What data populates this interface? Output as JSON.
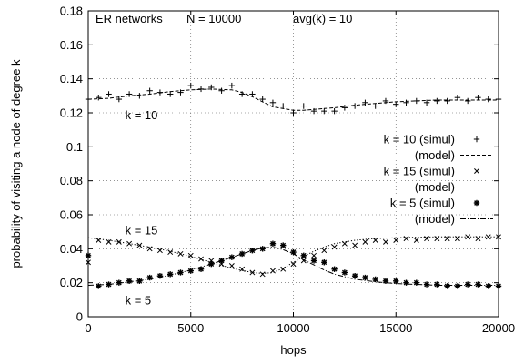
{
  "chart_data": {
    "type": "scatter",
    "title": "",
    "xlabel": "hops",
    "ylabel": "probability of visiting a node of degree k",
    "xlim": [
      0,
      20000
    ],
    "ylim": [
      0,
      0.18
    ],
    "xticks": [
      "0",
      "5000",
      "10000",
      "15000",
      "20000"
    ],
    "yticks": [
      "0",
      "0.02",
      "0.04",
      "0.06",
      "0.08",
      "0.1",
      "0.12",
      "0.14",
      "0.16",
      "0.18"
    ],
    "grid": true,
    "legend_position": "right",
    "header_texts": [
      "ER networks",
      "N = 10000",
      "avg(k) = 10"
    ],
    "annotations": [
      {
        "text": "k = 10",
        "x": 1800,
        "y": 0.1185
      },
      {
        "text": "k = 15",
        "x": 1800,
        "y": 0.0505
      },
      {
        "text": "k = 5",
        "x": 1800,
        "y": 0.0095
      }
    ],
    "series": [
      {
        "name": "k = 10 (simul)",
        "kind": "points",
        "marker": "plus",
        "x": [
          0,
          500,
          1000,
          1500,
          2000,
          2500,
          3000,
          3500,
          4000,
          4500,
          5000,
          5500,
          6000,
          6500,
          7000,
          7500,
          8000,
          8500,
          9000,
          9500,
          10000,
          10500,
          11000,
          11500,
          12000,
          12500,
          13000,
          13500,
          14000,
          14500,
          15000,
          15500,
          16000,
          16500,
          17000,
          17500,
          18000,
          18500,
          19000,
          19500,
          20000
        ],
        "y": [
          0.128,
          0.129,
          0.131,
          0.128,
          0.131,
          0.13,
          0.133,
          0.132,
          0.131,
          0.132,
          0.136,
          0.134,
          0.135,
          0.133,
          0.136,
          0.131,
          0.131,
          0.128,
          0.126,
          0.124,
          0.12,
          0.124,
          0.121,
          0.121,
          0.121,
          0.123,
          0.124,
          0.126,
          0.124,
          0.127,
          0.125,
          0.126,
          0.127,
          0.126,
          0.127,
          0.127,
          0.129,
          0.127,
          0.129,
          0.128,
          0.128
        ]
      },
      {
        "name": "(model)",
        "kind": "line",
        "dash": "4 2",
        "x": [
          0,
          1000,
          2000,
          3000,
          4000,
          5000,
          6000,
          7000,
          7500,
          8000,
          8500,
          9000,
          9500,
          10000,
          10500,
          11000,
          11500,
          12000,
          13000,
          14000,
          15000,
          16000,
          17000,
          18000,
          19000,
          20000
        ],
        "y": [
          0.128,
          0.1285,
          0.13,
          0.131,
          0.1325,
          0.1335,
          0.134,
          0.1335,
          0.132,
          0.1295,
          0.1265,
          0.1235,
          0.1225,
          0.1215,
          0.1215,
          0.122,
          0.1225,
          0.123,
          0.1245,
          0.1255,
          0.1265,
          0.127,
          0.1275,
          0.1275,
          0.1275,
          0.1275
        ]
      },
      {
        "name": "k = 15 (simul)",
        "kind": "points",
        "marker": "cross",
        "x": [
          0,
          500,
          1000,
          1500,
          2000,
          2500,
          3000,
          3500,
          4000,
          4500,
          5000,
          5500,
          6000,
          6500,
          7000,
          7500,
          8000,
          8500,
          9000,
          9500,
          10000,
          10500,
          11000,
          11500,
          12000,
          12500,
          13000,
          13500,
          14000,
          14500,
          15000,
          15500,
          16000,
          16500,
          17000,
          17500,
          18000,
          18500,
          19000,
          19500,
          20000
        ],
        "y": [
          0.032,
          0.045,
          0.044,
          0.044,
          0.043,
          0.042,
          0.04,
          0.039,
          0.038,
          0.037,
          0.036,
          0.034,
          0.033,
          0.031,
          0.03,
          0.028,
          0.026,
          0.025,
          0.027,
          0.028,
          0.031,
          0.033,
          0.036,
          0.039,
          0.041,
          0.043,
          0.042,
          0.044,
          0.045,
          0.044,
          0.045,
          0.046,
          0.045,
          0.046,
          0.046,
          0.046,
          0.046,
          0.047,
          0.046,
          0.047,
          0.047
        ]
      },
      {
        "name": "(model)",
        "kind": "line",
        "dash": "1.2 2",
        "x": [
          0,
          1000,
          2000,
          3000,
          4000,
          5000,
          6000,
          7000,
          8000,
          8500,
          9000,
          9500,
          10000,
          10500,
          11000,
          11500,
          12000,
          13000,
          14000,
          15000,
          16000,
          17000,
          18000,
          19000,
          20000
        ],
        "y": [
          0.0465,
          0.045,
          0.043,
          0.041,
          0.0385,
          0.0355,
          0.032,
          0.0285,
          0.026,
          0.0255,
          0.026,
          0.0285,
          0.032,
          0.0355,
          0.0385,
          0.041,
          0.043,
          0.045,
          0.046,
          0.0465,
          0.0468,
          0.047,
          0.047,
          0.047,
          0.047
        ]
      },
      {
        "name": "k = 5 (simul)",
        "kind": "points",
        "marker": "star",
        "x": [
          0,
          500,
          1000,
          1500,
          2000,
          2500,
          3000,
          3500,
          4000,
          4500,
          5000,
          5500,
          6000,
          6500,
          7000,
          7500,
          8000,
          8500,
          9000,
          9500,
          10000,
          10500,
          11000,
          11500,
          12000,
          12500,
          13000,
          13500,
          14000,
          14500,
          15000,
          15500,
          16000,
          16500,
          17000,
          17500,
          18000,
          18500,
          19000,
          19500,
          20000
        ],
        "y": [
          0.036,
          0.018,
          0.019,
          0.02,
          0.021,
          0.021,
          0.023,
          0.024,
          0.025,
          0.026,
          0.027,
          0.028,
          0.031,
          0.033,
          0.035,
          0.037,
          0.039,
          0.04,
          0.043,
          0.042,
          0.038,
          0.036,
          0.033,
          0.032,
          0.028,
          0.026,
          0.024,
          0.023,
          0.022,
          0.021,
          0.021,
          0.02,
          0.02,
          0.019,
          0.019,
          0.018,
          0.018,
          0.019,
          0.019,
          0.018,
          0.018
        ]
      },
      {
        "name": "(model)",
        "kind": "line",
        "dash": "6 2 1 2",
        "x": [
          0,
          1000,
          2000,
          3000,
          4000,
          5000,
          6000,
          7000,
          8000,
          8500,
          9000,
          9500,
          10000,
          10500,
          11000,
          11500,
          12000,
          13000,
          14000,
          15000,
          16000,
          17000,
          18000,
          19000,
          20000
        ],
        "y": [
          0.0185,
          0.019,
          0.0205,
          0.022,
          0.0245,
          0.0275,
          0.031,
          0.035,
          0.039,
          0.0405,
          0.041,
          0.0395,
          0.037,
          0.0335,
          0.0305,
          0.0275,
          0.025,
          0.022,
          0.0205,
          0.0195,
          0.019,
          0.0185,
          0.0185,
          0.0185,
          0.0185
        ]
      }
    ]
  }
}
